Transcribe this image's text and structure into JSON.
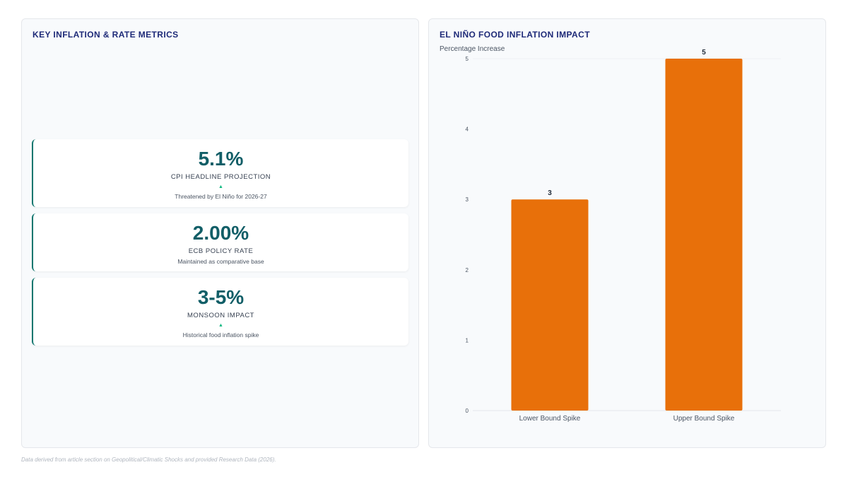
{
  "left_panel": {
    "title": "KEY INFLATION & RATE METRICS",
    "metrics": [
      {
        "value": "5.1%",
        "label": "CPI HEADLINE PROJECTION",
        "arrow": "▲",
        "note": "Threatened by El Niño for 2026-27"
      },
      {
        "value": "2.00%",
        "label": "ECB POLICY RATE",
        "arrow": "",
        "note": "Maintained as comparative base"
      },
      {
        "value": "3-5%",
        "label": "MONSOON IMPACT",
        "arrow": "▲",
        "note": "Historical food inflation spike"
      }
    ]
  },
  "right_panel": {
    "title": "EL NIÑO FOOD INFLATION IMPACT"
  },
  "chart_data": {
    "type": "bar",
    "categories": [
      "Lower Bound Spike",
      "Upper Bound Spike"
    ],
    "values": [
      3,
      5
    ],
    "title": "",
    "xlabel": "",
    "ylabel": "Percentage Increase",
    "ylim": [
      0,
      5
    ],
    "yticks": [
      0,
      1,
      2,
      3,
      4,
      5
    ],
    "bar_color": "#e8700a",
    "grid": false,
    "legend": "none"
  },
  "footnote": "Data derived from article section on Geopolitical/Climatic Shocks and provided Research Data (2026)."
}
